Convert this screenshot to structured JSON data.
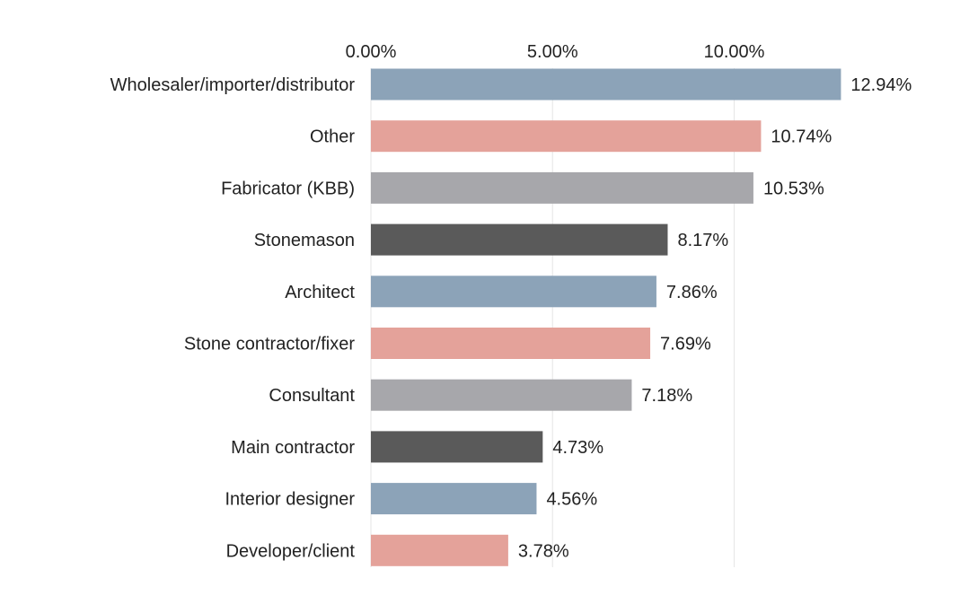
{
  "chart_data": {
    "type": "bar",
    "orientation": "horizontal",
    "categories": [
      "Wholesaler/importer/distributor",
      "Other",
      "Fabricator (KBB)",
      "Stonemason",
      "Architect",
      "Stone contractor/fixer",
      "Consultant",
      "Main contractor",
      "Interior designer",
      "Developer/client"
    ],
    "values": [
      12.94,
      10.74,
      10.53,
      8.17,
      7.86,
      7.69,
      7.18,
      4.73,
      4.56,
      3.78
    ],
    "value_labels": [
      "12.94%",
      "10.74%",
      "10.53%",
      "8.17%",
      "7.86%",
      "7.69%",
      "7.18%",
      "4.73%",
      "4.56%",
      "3.78%"
    ],
    "bar_colors": [
      "#8ca3b8",
      "#e4a29a",
      "#a7a7ab",
      "#5a5a5a",
      "#8ca3b8",
      "#e4a29a",
      "#a7a7ab",
      "#5a5a5a",
      "#8ca3b8",
      "#e4a29a"
    ],
    "x_ticks": [
      0,
      5,
      10
    ],
    "x_tick_labels": [
      "0.00%",
      "5.00%",
      "10.00%"
    ],
    "xlim": [
      0,
      15
    ],
    "x_axis_position": "top",
    "grid": true,
    "legend": "none",
    "title": "",
    "xlabel": "",
    "ylabel": ""
  }
}
